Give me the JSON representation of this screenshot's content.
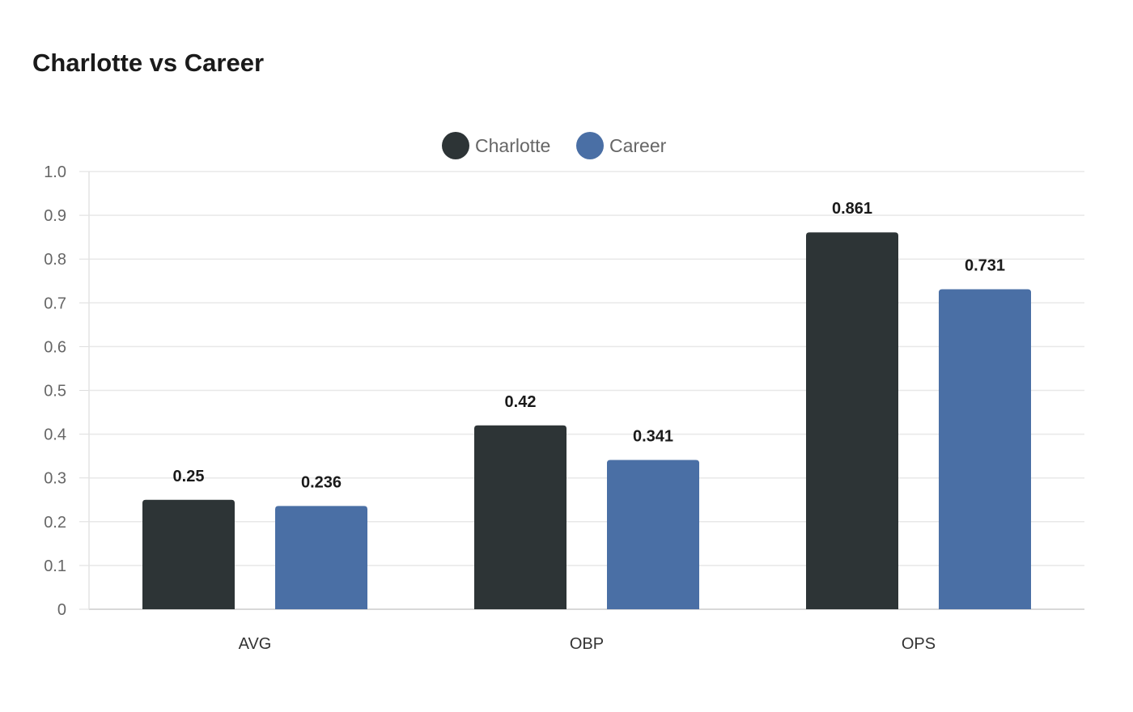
{
  "title": "Charlotte vs Career",
  "chart_data": {
    "type": "bar",
    "title": "Charlotte vs Career",
    "categories": [
      "AVG",
      "OBP",
      "OPS"
    ],
    "series": [
      {
        "name": "Charlotte",
        "color": "#2d3436",
        "values": [
          0.25,
          0.42,
          0.861
        ]
      },
      {
        "name": "Career",
        "color": "#4a6fa5",
        "values": [
          0.236,
          0.341,
          0.731
        ]
      }
    ],
    "ylim": [
      0,
      1.0
    ],
    "yticks": [
      "0",
      "0.1",
      "0.2",
      "0.3",
      "0.4",
      "0.5",
      "0.6",
      "0.7",
      "0.8",
      "0.9",
      "1.0"
    ],
    "value_labels": [
      [
        "0.25",
        "0.42",
        "0.861"
      ],
      [
        "0.236",
        "0.341",
        "0.731"
      ]
    ],
    "xlabel": "",
    "ylabel": "",
    "grid": true,
    "legend_position": "top-center"
  }
}
